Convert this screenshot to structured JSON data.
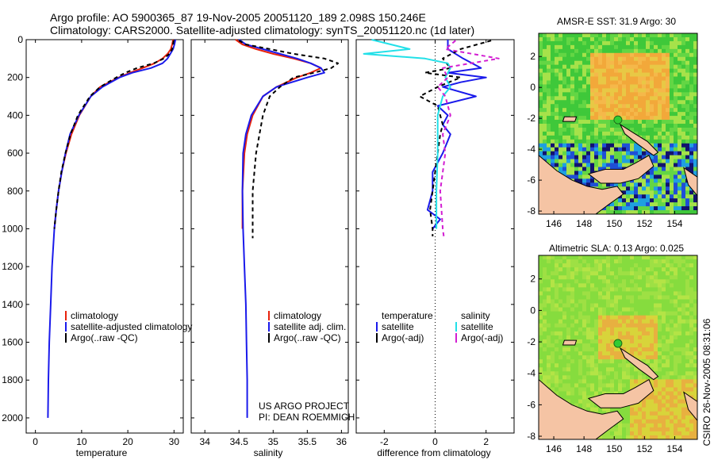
{
  "header": {
    "title_line1": "Argo profile: AO 5900365_87 19-Nov-2005 20051120_189 2.098S 150.246E",
    "title_line2": "Climatology: CARS2000. Satellite-adjusted climatology: synTS_20051120.nc (1d later)"
  },
  "side_label": "CSIRO 26-Nov-2005 08:31:06",
  "colors": {
    "climatology": "#e8220c",
    "satellite": "#1a1aeb",
    "argo": "#000000",
    "satellite_salinity": "#22e0e8",
    "argo_salinity": "#d21ed2",
    "land": "#f5c4a4"
  },
  "chart_data": [
    {
      "type": "line",
      "id": "temperature",
      "xlabel": "temperature",
      "ylabel": "",
      "xlim": [
        -2,
        32
      ],
      "ylim": [
        2080,
        0
      ],
      "xticks": [
        0,
        10,
        20,
        30
      ],
      "yticks": [
        0,
        200,
        400,
        600,
        800,
        1000,
        1200,
        1400,
        1600,
        1800,
        2000
      ],
      "legend_position": "lower-left",
      "series": [
        {
          "name": "climatology",
          "color_key": "climatology",
          "dash": "",
          "depth": [
            0,
            25,
            50,
            75,
            100,
            125,
            150,
            175,
            200,
            250,
            300,
            400,
            500,
            600,
            700,
            800,
            900,
            1000
          ],
          "values": [
            29.8,
            29.6,
            29.3,
            28.6,
            27.5,
            25.8,
            23.2,
            20.5,
            18.0,
            14.0,
            12.0,
            9.5,
            7.8,
            6.6,
            5.7,
            5.0,
            4.5,
            4.1
          ]
        },
        {
          "name": "satellite-adjusted climatology",
          "color_key": "satellite",
          "dash": "",
          "depth": [
            0,
            25,
            50,
            75,
            100,
            125,
            150,
            175,
            200,
            250,
            300,
            400,
            500,
            600,
            700,
            800,
            900,
            1000,
            1200,
            1400,
            1600,
            1800,
            2000
          ],
          "values": [
            30.3,
            30.1,
            29.8,
            29.2,
            28.6,
            27.5,
            25.0,
            21.0,
            18.2,
            14.5,
            12.0,
            9.4,
            7.5,
            6.5,
            5.7,
            5.0,
            4.5,
            4.1,
            3.6,
            3.3,
            3.0,
            2.8,
            2.7
          ]
        },
        {
          "name": "Argo(..raw -QC)",
          "color_key": "argo",
          "dash": "5,4",
          "depth": [
            5,
            25,
            50,
            75,
            100,
            125,
            150,
            175,
            200,
            250,
            300,
            400,
            500,
            600,
            700,
            800,
            900,
            1000
          ],
          "values": [
            29.9,
            29.8,
            29.6,
            29.0,
            27.8,
            25.6,
            22.0,
            19.5,
            17.5,
            14.0,
            11.8,
            9.2,
            7.6,
            6.5,
            5.6,
            5.0,
            4.5,
            4.1
          ]
        }
      ],
      "legend": [
        "climatology",
        "satellite-adjusted climatology",
        "Argo(..raw -QC)"
      ]
    },
    {
      "type": "line",
      "id": "salinity",
      "xlabel": "salinity",
      "xlim": [
        33.8,
        36.1
      ],
      "ylim": [
        2080,
        0
      ],
      "xticks": [
        34,
        34.5,
        35,
        35.5,
        36
      ],
      "legend_position": "lower-left",
      "annotation_line1": "US ARGO PROJECT",
      "annotation_line2": "PI: DEAN ROEMMICH",
      "series": [
        {
          "name": "climatology",
          "color_key": "climatology",
          "dash": "",
          "depth": [
            0,
            25,
            50,
            75,
            100,
            125,
            150,
            175,
            200,
            250,
            300,
            400,
            500,
            600,
            800,
            1000
          ],
          "values": [
            34.45,
            34.55,
            34.75,
            35.0,
            35.3,
            35.55,
            35.7,
            35.55,
            35.35,
            35.05,
            34.85,
            34.7,
            34.62,
            34.58,
            34.55,
            34.55
          ]
        },
        {
          "name": "satellite adj. clim.",
          "color_key": "satellite",
          "dash": "",
          "depth": [
            0,
            25,
            50,
            75,
            100,
            125,
            150,
            175,
            200,
            250,
            300,
            400,
            500,
            600,
            800,
            1000,
            1200,
            1400,
            1600,
            1800,
            2000
          ],
          "values": [
            34.5,
            34.6,
            34.85,
            35.1,
            35.35,
            35.55,
            35.7,
            35.75,
            35.5,
            35.05,
            34.85,
            34.68,
            34.6,
            34.56,
            34.55,
            34.56,
            34.58,
            34.6,
            34.61,
            34.62,
            34.62
          ]
        },
        {
          "name": "Argo(..raw -QC)",
          "color_key": "argo",
          "dash": "5,4",
          "depth": [
            5,
            25,
            50,
            75,
            100,
            125,
            150,
            175,
            200,
            250,
            300,
            400,
            500,
            600,
            800,
            1000,
            1050
          ],
          "values": [
            34.5,
            34.6,
            34.95,
            35.3,
            35.75,
            35.95,
            35.85,
            35.6,
            35.3,
            35.1,
            34.95,
            34.85,
            34.8,
            34.75,
            34.7,
            34.7,
            34.7
          ]
        }
      ],
      "legend": [
        "climatology",
        "satellite adj. clim.",
        "Argo(..raw -QC)"
      ]
    },
    {
      "type": "line",
      "id": "difference",
      "xlabel": "difference from climatology",
      "xlim": [
        -3.1,
        3.1
      ],
      "ylim": [
        2080,
        0
      ],
      "xticks": [
        -2,
        0,
        2
      ],
      "zero_line": 0,
      "legend_position": "lower-left",
      "legend_headers": [
        "temperature",
        "salinity"
      ],
      "series": [
        {
          "name": "satellite",
          "group": "temperature",
          "color_key": "satellite",
          "dash": "",
          "depth": [
            0,
            50,
            100,
            150,
            175,
            200,
            225,
            250,
            300,
            350,
            400,
            450,
            500,
            600,
            700,
            800,
            900,
            950,
            1000
          ],
          "values": [
            0.5,
            0.5,
            1.1,
            1.8,
            0.5,
            2.0,
            1.0,
            0.3,
            1.6,
            0.1,
            0.5,
            0.3,
            0.6,
            0.3,
            -0.1,
            -0.1,
            -0.3,
            0.2,
            -0.1
          ]
        },
        {
          "name": "Argo(-adj)",
          "group": "temperature",
          "color_key": "argo",
          "dash": "5,4",
          "depth": [
            5,
            50,
            100,
            150,
            175,
            200,
            250,
            300,
            350,
            400,
            450,
            500,
            600,
            700,
            800,
            900,
            1000,
            1040
          ],
          "values": [
            2.2,
            1.0,
            0.3,
            0.6,
            -0.4,
            1.0,
            0.1,
            -0.6,
            0.1,
            0.2,
            0.3,
            0.2,
            0.1,
            0.0,
            -0.1,
            -0.2,
            -0.1,
            -0.1
          ]
        },
        {
          "name": "satellite",
          "group": "salinity",
          "color_key": "satellite_salinity",
          "dash": "",
          "depth": [
            0,
            50,
            75,
            100,
            125,
            150,
            200,
            250,
            300,
            400,
            500,
            600,
            800,
            1000
          ],
          "values": [
            -2.5,
            -1.0,
            -2.8,
            -0.4,
            0.5,
            0.6,
            0.4,
            0.6,
            0.3,
            0.1,
            0.1,
            0.1,
            0.05,
            0.05
          ]
        },
        {
          "name": "Argo(-adj)",
          "group": "salinity",
          "color_key": "argo_salinity",
          "dash": "5,4",
          "depth": [
            5,
            50,
            100,
            150,
            200,
            250,
            300,
            400,
            500,
            600,
            800,
            1000,
            1050
          ],
          "values": [
            0.8,
            0.4,
            2.5,
            0.3,
            0.5,
            0.1,
            0.4,
            0.6,
            0.3,
            0.4,
            0.2,
            0.3,
            0.35
          ]
        }
      ]
    },
    {
      "type": "heatmap",
      "id": "sst_map",
      "title": "AMSR-E SST: 31.9 Argo: 30",
      "xlim": [
        145,
        155.5
      ],
      "ylim": [
        -8.2,
        3.5
      ],
      "xticks": [
        146,
        148,
        150,
        152,
        154
      ],
      "yticks": [
        2,
        0,
        -2,
        -4,
        -6,
        -8
      ],
      "marker": {
        "lon": 150.246,
        "lat": -2.098
      }
    },
    {
      "type": "heatmap",
      "id": "sla_map",
      "title": "Altimetric SLA: 0.13 Argo: 0.025",
      "xlim": [
        145,
        155.5
      ],
      "ylim": [
        -8.2,
        3.5
      ],
      "xticks": [
        146,
        148,
        150,
        152,
        154
      ],
      "yticks": [
        2,
        0,
        -2,
        -4,
        -6,
        -8
      ],
      "marker": {
        "lon": 150.246,
        "lat": -2.098
      }
    }
  ]
}
